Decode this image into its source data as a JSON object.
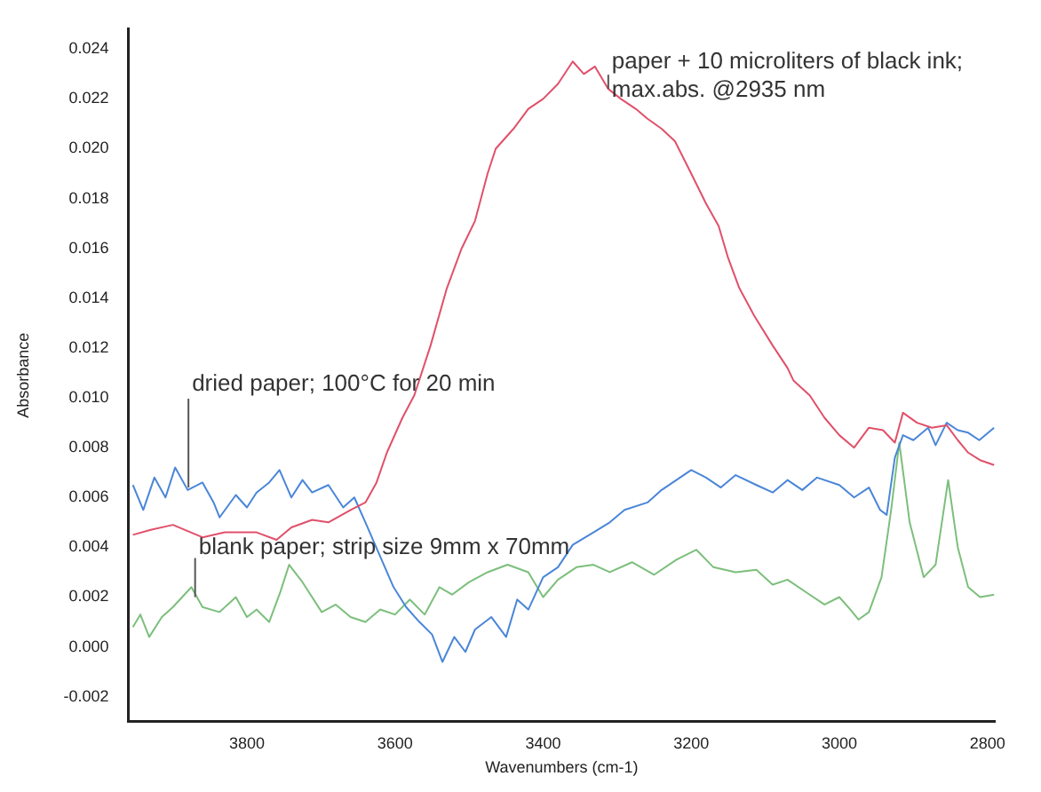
{
  "chart_data": {
    "type": "line",
    "xlabel": "Wavenumbers (cm-1)",
    "ylabel": "Absorbance",
    "xlim": [
      3960,
      2790
    ],
    "xticks": [
      3800,
      3600,
      3400,
      3200,
      3000,
      2800
    ],
    "ylim": [
      -0.003,
      0.0248
    ],
    "yticks": [
      {
        "value": -0.002,
        "label": "-0.002"
      },
      {
        "value": 0,
        "label": "0.000"
      },
      {
        "value": 0.002,
        "label": "0.002"
      },
      {
        "value": 0.004,
        "label": "0.004"
      },
      {
        "value": 0.006,
        "label": "0.006"
      },
      {
        "value": 0.008,
        "label": "0.008"
      },
      {
        "value": 0.01,
        "label": "0.010"
      },
      {
        "value": 0.012,
        "label": "0.012"
      },
      {
        "value": 0.014,
        "label": "0.014"
      },
      {
        "value": 0.016,
        "label": "0.016"
      },
      {
        "value": 0.018,
        "label": "0.018"
      },
      {
        "value": 0.02,
        "label": "0.020"
      },
      {
        "value": 0.022,
        "label": "0.022"
      },
      {
        "value": 0.024,
        "label": "0.024"
      }
    ],
    "grid": false,
    "legend": false,
    "marker": "none",
    "line_style": "solid",
    "series": [
      {
        "color": "#e0506a",
        "x": [
          3954,
          3930,
          3900,
          3860,
          3830,
          3787,
          3760,
          3740,
          3712,
          3690,
          3660,
          3640,
          3625,
          3611,
          3590,
          3574,
          3552,
          3530,
          3510,
          3492,
          3475,
          3464,
          3440,
          3420,
          3400,
          3380,
          3360,
          3345,
          3330,
          3312,
          3295,
          3275,
          3259,
          3240,
          3222,
          3200,
          3180,
          3163,
          3150,
          3135,
          3115,
          3090,
          3070,
          3062,
          3040,
          3020,
          3000,
          2980,
          2960,
          2941,
          2925,
          2914,
          2895,
          2875,
          2855,
          2840,
          2826,
          2810,
          2791
        ],
        "values": [
          0.0045,
          0.0047,
          0.0049,
          0.0044,
          0.0046,
          0.0046,
          0.0043,
          0.0048,
          0.0051,
          0.005,
          0.0055,
          0.0058,
          0.0066,
          0.0078,
          0.0092,
          0.0101,
          0.0121,
          0.0144,
          0.016,
          0.0171,
          0.019,
          0.02,
          0.0208,
          0.0216,
          0.022,
          0.0226,
          0.0235,
          0.023,
          0.0233,
          0.0224,
          0.022,
          0.0216,
          0.0212,
          0.0208,
          0.0203,
          0.019,
          0.0178,
          0.0169,
          0.0156,
          0.0144,
          0.0133,
          0.0121,
          0.0112,
          0.0107,
          0.0101,
          0.0092,
          0.0085,
          0.008,
          0.0088,
          0.0087,
          0.0082,
          0.0094,
          0.009,
          0.0088,
          0.0089,
          0.0083,
          0.0078,
          0.0075,
          0.0073
        ]
      },
      {
        "color": "#4a86d8",
        "x": [
          3954,
          3940,
          3925,
          3910,
          3897,
          3880,
          3860,
          3845,
          3837,
          3815,
          3800,
          3787,
          3770,
          3756,
          3740,
          3725,
          3712,
          3690,
          3670,
          3655,
          3640,
          3624,
          3602,
          3585,
          3567,
          3550,
          3536,
          3520,
          3505,
          3492,
          3470,
          3450,
          3435,
          3420,
          3400,
          3380,
          3360,
          3332,
          3310,
          3290,
          3259,
          3240,
          3220,
          3200,
          3180,
          3160,
          3140,
          3112,
          3090,
          3070,
          3050,
          3030,
          3000,
          2980,
          2960,
          2945,
          2936,
          2925,
          2914,
          2900,
          2880,
          2870,
          2855,
          2840,
          2826,
          2811,
          2791
        ],
        "values": [
          0.0065,
          0.0055,
          0.0068,
          0.006,
          0.0072,
          0.0063,
          0.0066,
          0.0058,
          0.0052,
          0.0061,
          0.0056,
          0.0062,
          0.0066,
          0.0071,
          0.006,
          0.0067,
          0.0062,
          0.0065,
          0.0056,
          0.006,
          0.005,
          0.0039,
          0.0024,
          0.0016,
          0.001,
          0.0005,
          -0.0006,
          0.0004,
          -0.0002,
          0.0007,
          0.0012,
          0.0004,
          0.0019,
          0.0015,
          0.0028,
          0.0032,
          0.0041,
          0.0046,
          0.005,
          0.0055,
          0.0058,
          0.0063,
          0.0067,
          0.0071,
          0.0068,
          0.0064,
          0.0069,
          0.0065,
          0.0062,
          0.0067,
          0.0063,
          0.0068,
          0.0065,
          0.006,
          0.0064,
          0.0055,
          0.0053,
          0.0076,
          0.0085,
          0.0083,
          0.0088,
          0.0081,
          0.009,
          0.0087,
          0.0086,
          0.0083,
          0.0088
        ]
      },
      {
        "color": "#7cbf7c",
        "x": [
          3954,
          3944,
          3932,
          3915,
          3900,
          3875,
          3860,
          3837,
          3815,
          3800,
          3787,
          3770,
          3755,
          3743,
          3725,
          3699,
          3680,
          3660,
          3640,
          3620,
          3600,
          3580,
          3560,
          3540,
          3523,
          3500,
          3475,
          3448,
          3420,
          3400,
          3380,
          3355,
          3332,
          3310,
          3280,
          3250,
          3220,
          3193,
          3170,
          3140,
          3112,
          3090,
          3070,
          3040,
          3020,
          3000,
          2985,
          2974,
          2960,
          2943,
          2930,
          2919,
          2905,
          2886,
          2870,
          2853,
          2840,
          2826,
          2810,
          2791
        ],
        "values": [
          0.0008,
          0.0013,
          0.0004,
          0.0012,
          0.0016,
          0.0024,
          0.0016,
          0.0014,
          0.002,
          0.0012,
          0.0015,
          0.001,
          0.0022,
          0.0033,
          0.0026,
          0.0014,
          0.0017,
          0.0012,
          0.001,
          0.0015,
          0.0013,
          0.0019,
          0.0013,
          0.0024,
          0.0021,
          0.0026,
          0.003,
          0.0033,
          0.003,
          0.002,
          0.0027,
          0.0032,
          0.0033,
          0.003,
          0.0034,
          0.0029,
          0.0035,
          0.0039,
          0.0032,
          0.003,
          0.0031,
          0.0025,
          0.0027,
          0.0021,
          0.0017,
          0.002,
          0.0015,
          0.0011,
          0.0014,
          0.0028,
          0.0055,
          0.0082,
          0.005,
          0.0028,
          0.0033,
          0.0067,
          0.004,
          0.0024,
          0.002,
          0.0021
        ]
      }
    ],
    "annotations": [
      {
        "text": "dried paper; 100°C for 20 min",
        "x": 3879,
        "y": 0.0064
      },
      {
        "text": "blank paper; strip size 9mm x 70mm",
        "x": 3870,
        "y": 0.002
      },
      {
        "text": "paper + 10 microliters of black ink;\nmax.abs. @2935 nm",
        "x": 3312,
        "y": 0.0224
      }
    ]
  }
}
